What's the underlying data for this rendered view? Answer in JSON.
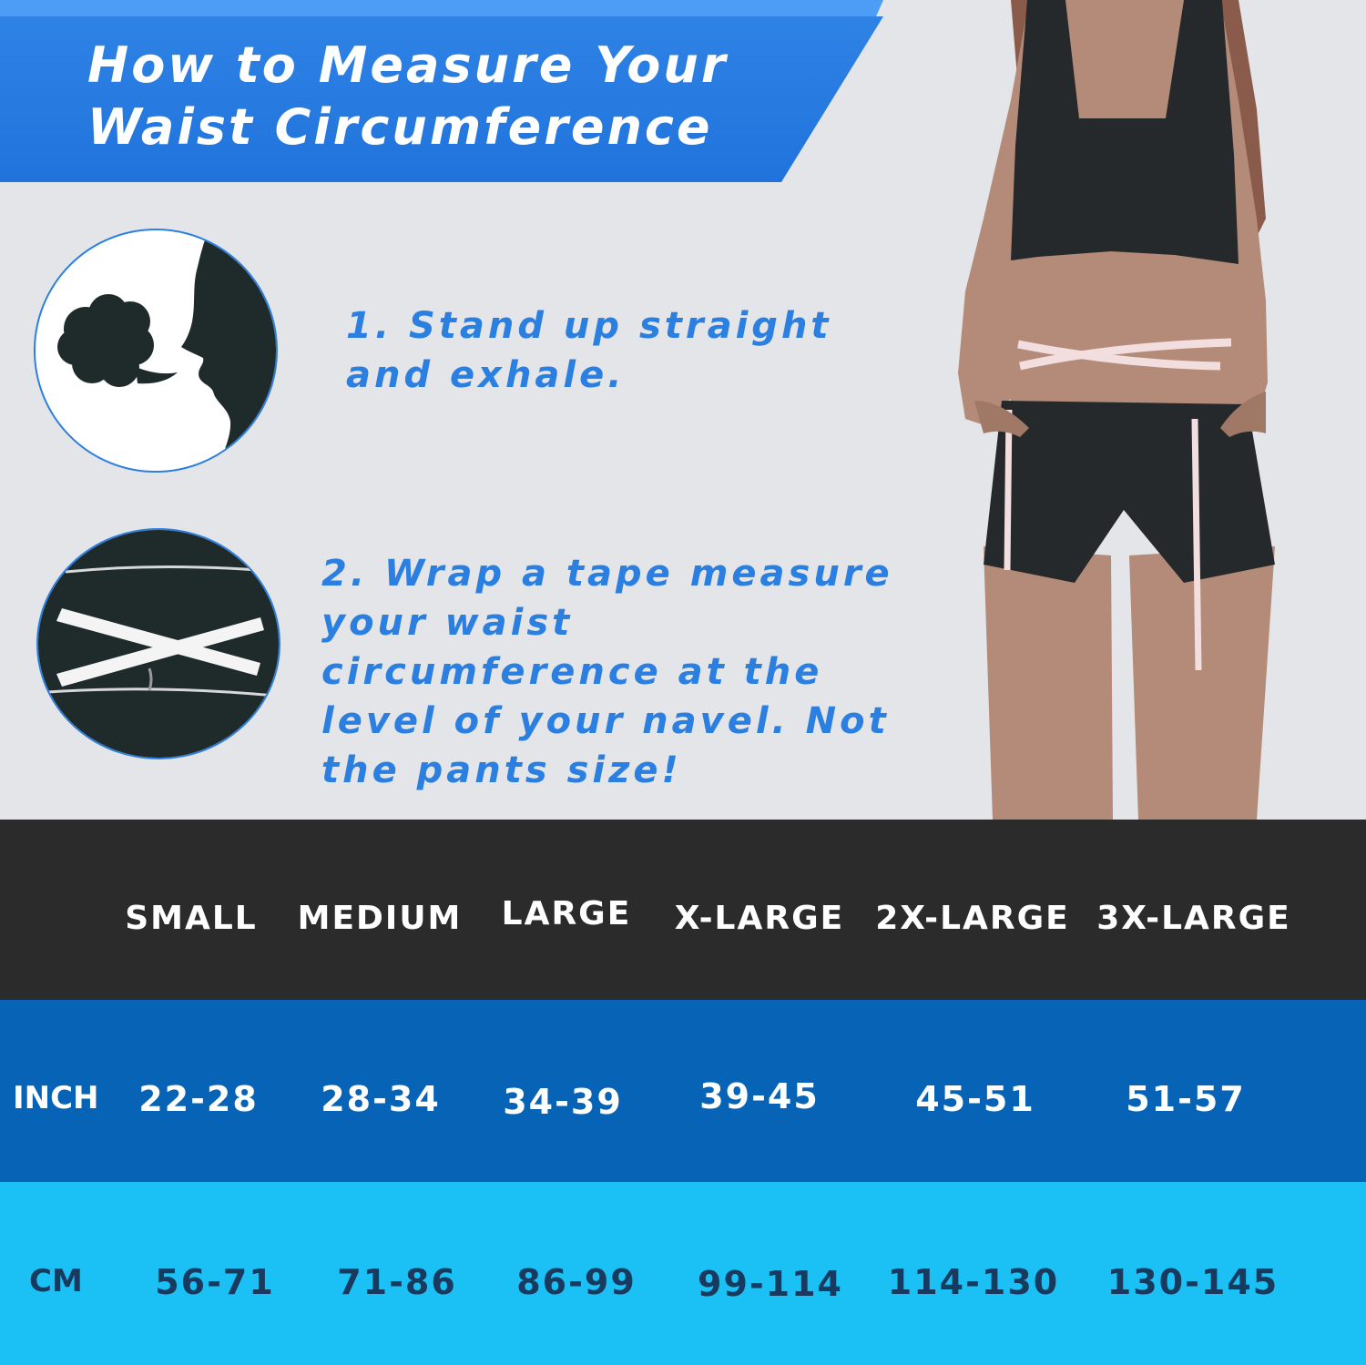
{
  "header": {
    "title": "How to Measure Your Waist Circumference"
  },
  "steps": [
    {
      "text": "1. Stand up straight and exhale."
    },
    {
      "text": "2. Wrap a tape measure your waist circumference at the level of your navel. Not the pants size!"
    }
  ],
  "size_table": {
    "sizes": [
      "SMALL",
      "MEDIUM",
      "LARGE",
      "X-LARGE",
      "2X-LARGE",
      "3X-LARGE"
    ],
    "rows": [
      {
        "label": "INCH",
        "values": [
          "22-28",
          "28-34",
          "34-39",
          "39-45",
          "45-51",
          "51-57"
        ]
      },
      {
        "label": "CM",
        "values": [
          "56-71",
          "71-86",
          "86-99",
          "99-114",
          "114-130",
          "130-145"
        ]
      }
    ]
  },
  "colors": {
    "banner_blue": "#2f83e6",
    "step_text_blue": "#2b7fe0",
    "header_row_bg": "#2b2b2c",
    "inch_row_bg": "#0763b6",
    "cm_row_bg": "#1bc0f5",
    "cm_text": "#173a5e"
  },
  "icons": {
    "step1": "exhale-profile-icon",
    "step2": "waist-tape-icon"
  }
}
